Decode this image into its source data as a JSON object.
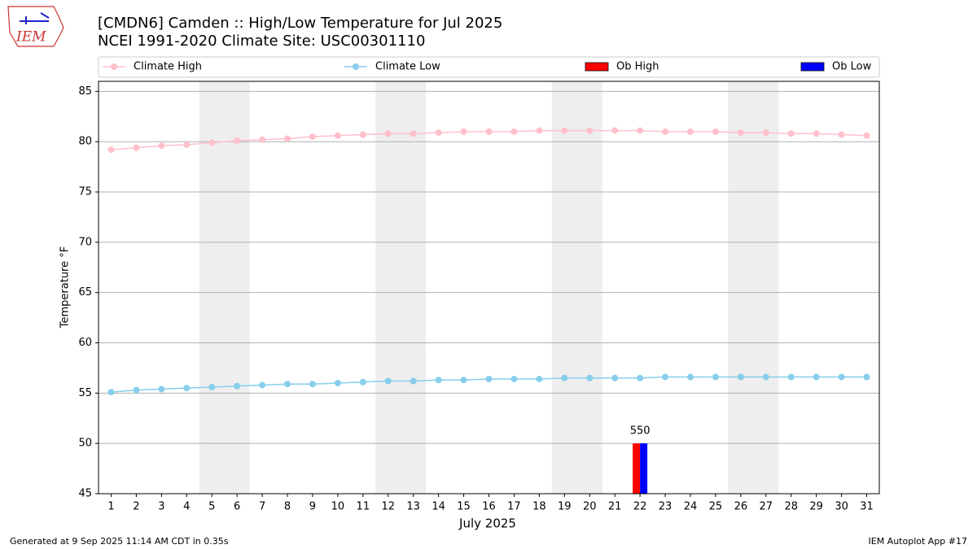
{
  "chart_data": {
    "type": "line",
    "title": "[CMDN6] Camden :: High/Low Temperature for Jul 2025",
    "subtitle": "NCEI 1991-2020 Climate Site: USC00301110",
    "xlabel": "July 2025",
    "ylabel": "Temperature °F",
    "categories": [
      "1",
      "2",
      "3",
      "4",
      "5",
      "6",
      "7",
      "8",
      "9",
      "10",
      "11",
      "12",
      "13",
      "14",
      "15",
      "16",
      "17",
      "18",
      "19",
      "20",
      "21",
      "22",
      "23",
      "24",
      "25",
      "26",
      "27",
      "28",
      "29",
      "30",
      "31"
    ],
    "xlim": [
      0.5,
      31.5
    ],
    "ylim": [
      45,
      86
    ],
    "yticks": [
      45,
      50,
      55,
      60,
      65,
      70,
      75,
      80,
      85
    ],
    "grid": true,
    "shaded_ranges": [
      [
        4.5,
        6.5
      ],
      [
        11.5,
        13.5
      ],
      [
        18.5,
        20.5
      ],
      [
        25.5,
        27.5
      ]
    ],
    "series": [
      {
        "name": "Climate High",
        "type": "line",
        "color": "#ffc0cb",
        "values": [
          79.2,
          79.4,
          79.6,
          79.7,
          79.9,
          80.1,
          80.2,
          80.3,
          80.5,
          80.6,
          80.7,
          80.8,
          80.8,
          80.9,
          81.0,
          81.0,
          81.0,
          81.1,
          81.1,
          81.1,
          81.1,
          81.1,
          81.0,
          81.0,
          81.0,
          80.9,
          80.9,
          80.8,
          80.8,
          80.7,
          80.6
        ]
      },
      {
        "name": "Climate Low",
        "type": "line",
        "color": "#87ceeb",
        "values": [
          55.1,
          55.3,
          55.4,
          55.5,
          55.6,
          55.7,
          55.8,
          55.9,
          55.9,
          56.0,
          56.1,
          56.2,
          56.2,
          56.3,
          56.3,
          56.4,
          56.4,
          56.4,
          56.5,
          56.5,
          56.5,
          56.5,
          56.6,
          56.6,
          56.6,
          56.6,
          56.6,
          56.6,
          56.6,
          56.6,
          56.6
        ]
      },
      {
        "name": "Ob High",
        "type": "bar",
        "color": "#ff0000",
        "values": [
          null,
          null,
          null,
          null,
          null,
          null,
          null,
          null,
          null,
          null,
          null,
          null,
          null,
          null,
          null,
          null,
          null,
          null,
          null,
          null,
          null,
          50,
          null,
          null,
          null,
          null,
          null,
          null,
          null,
          null,
          null
        ]
      },
      {
        "name": "Ob Low",
        "type": "bar",
        "color": "#0000ff",
        "values": [
          null,
          null,
          null,
          null,
          null,
          null,
          null,
          null,
          null,
          null,
          null,
          null,
          null,
          null,
          null,
          null,
          null,
          null,
          null,
          null,
          null,
          50,
          null,
          null,
          null,
          null,
          null,
          null,
          null,
          null,
          null
        ]
      }
    ],
    "annotations": [
      "550"
    ]
  },
  "logo_text": "IEM",
  "footer_left": "Generated at 9 Sep 2025 11:14 AM CDT in 0.35s",
  "footer_right": "IEM Autoplot App #17"
}
